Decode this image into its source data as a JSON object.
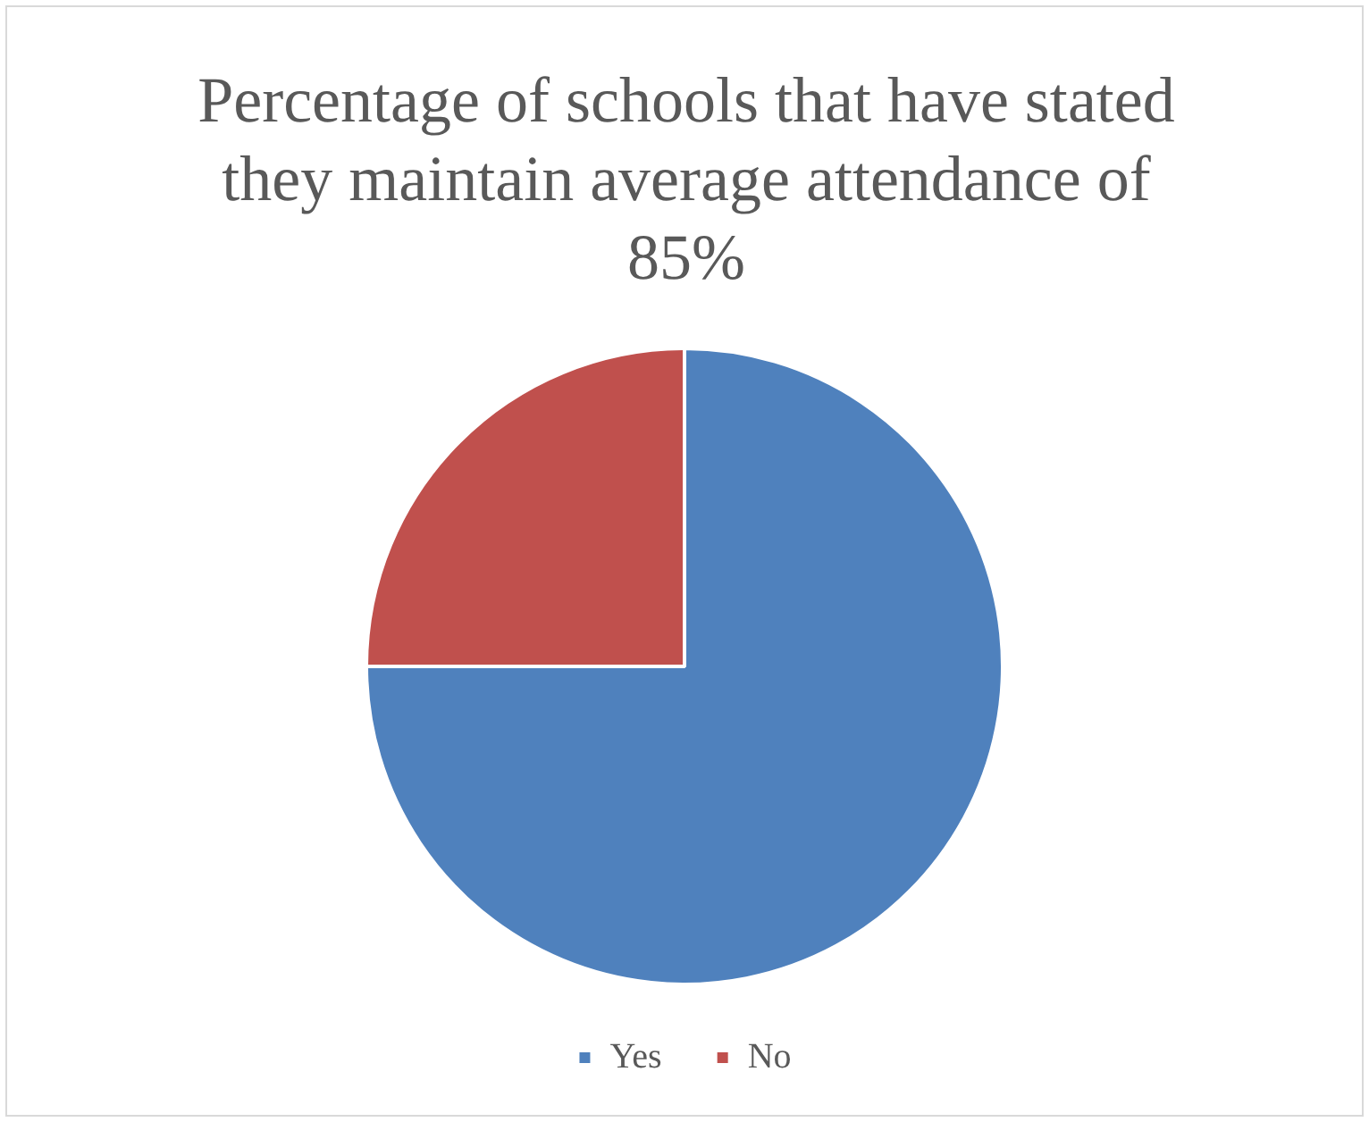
{
  "chart_data": {
    "type": "pie",
    "title": "Percentage of schools that have stated they maintain average attendance of 85%",
    "categories": [
      "Yes",
      "No"
    ],
    "values": [
      75,
      25
    ],
    "colors": [
      "#4f81bd",
      "#c0504d"
    ],
    "legend": "bottom"
  }
}
